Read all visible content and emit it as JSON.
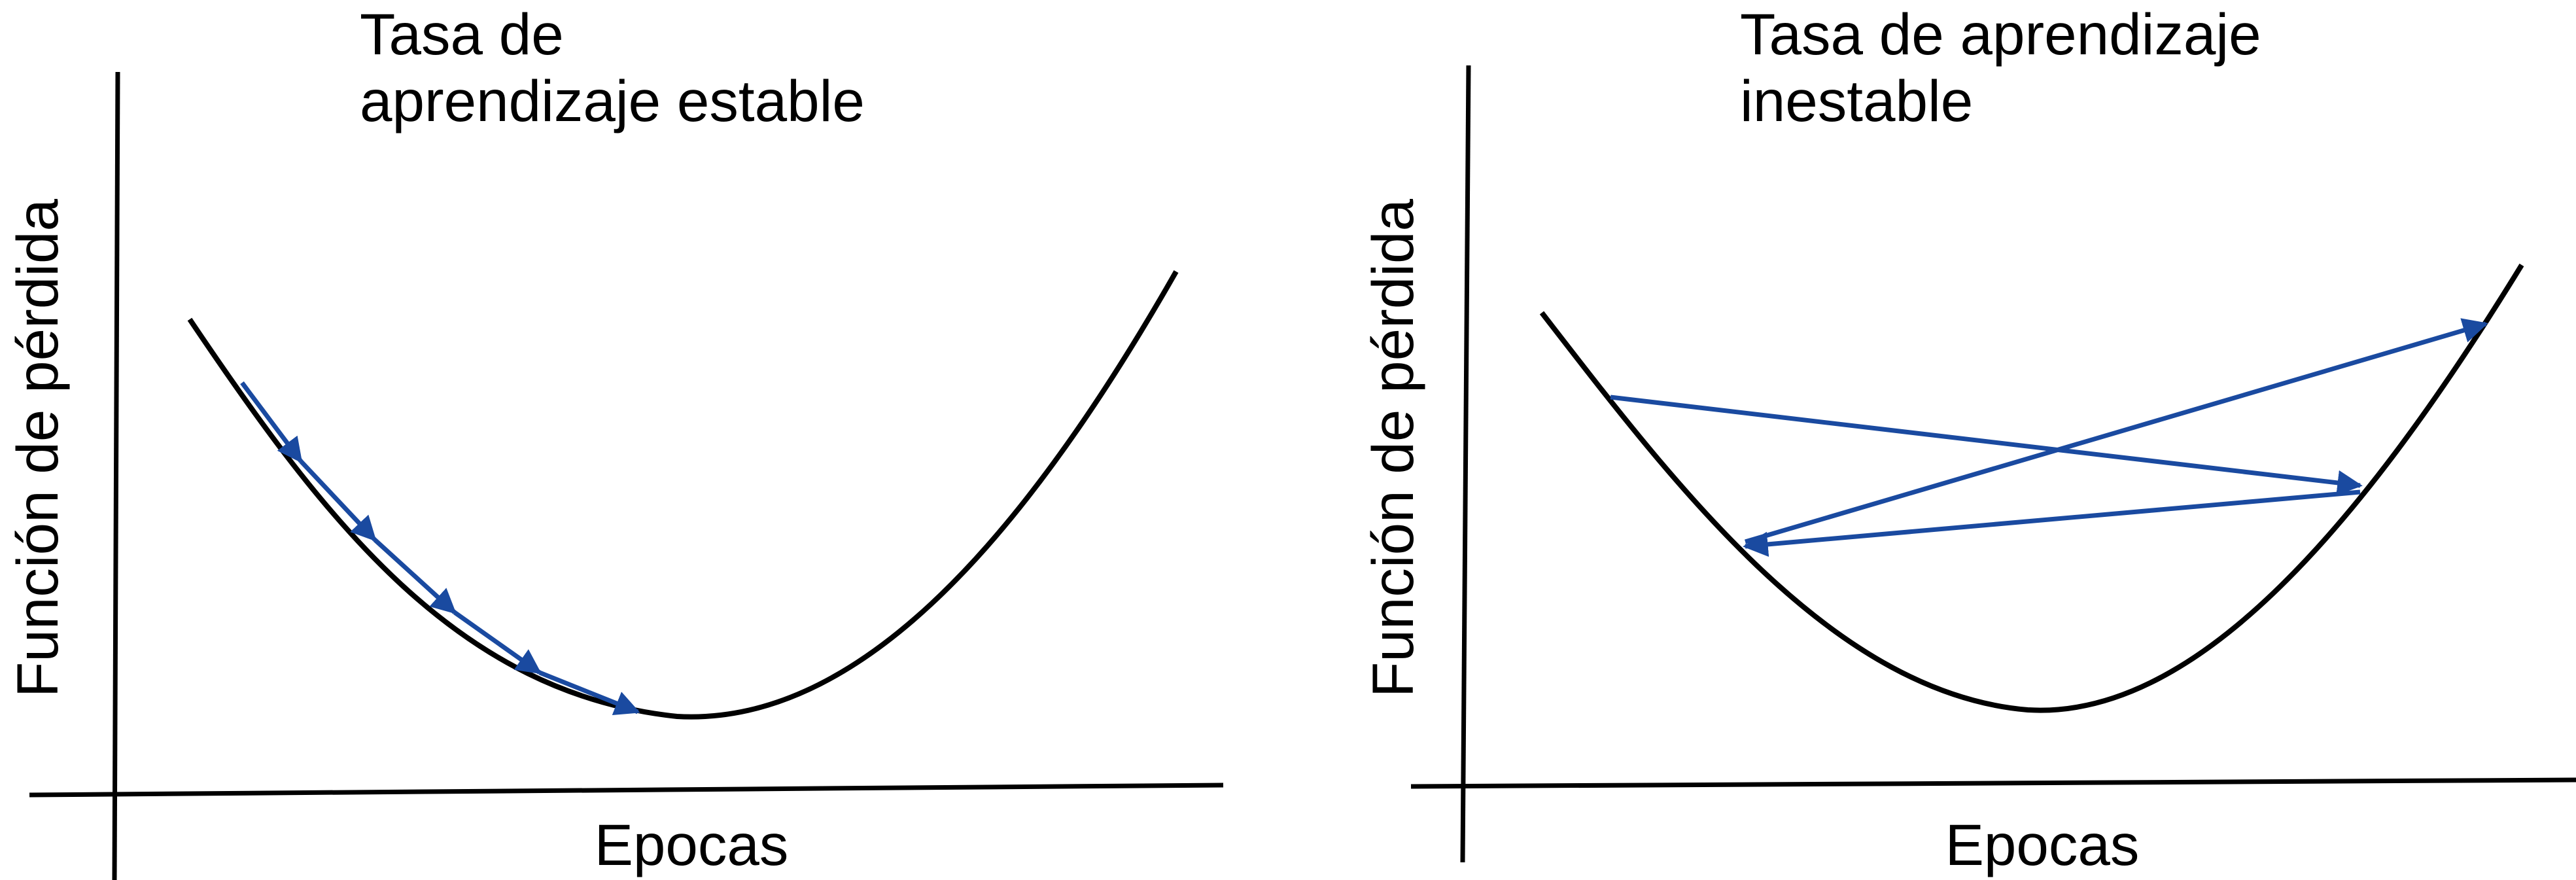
{
  "colors": {
    "curve": "#000000",
    "axis": "#000000",
    "arrow": "#1a4aa0"
  },
  "panels": [
    {
      "title_line1": "Tasa de",
      "title_line2": "aprendizaje estable",
      "ylabel": "Función de pérdida",
      "xlabel": "Epocas"
    },
    {
      "title_line1": "Tasa de aprendizaje",
      "title_line2": "inestable",
      "ylabel": "Función de pérdida",
      "xlabel": "Epocas"
    }
  ]
}
